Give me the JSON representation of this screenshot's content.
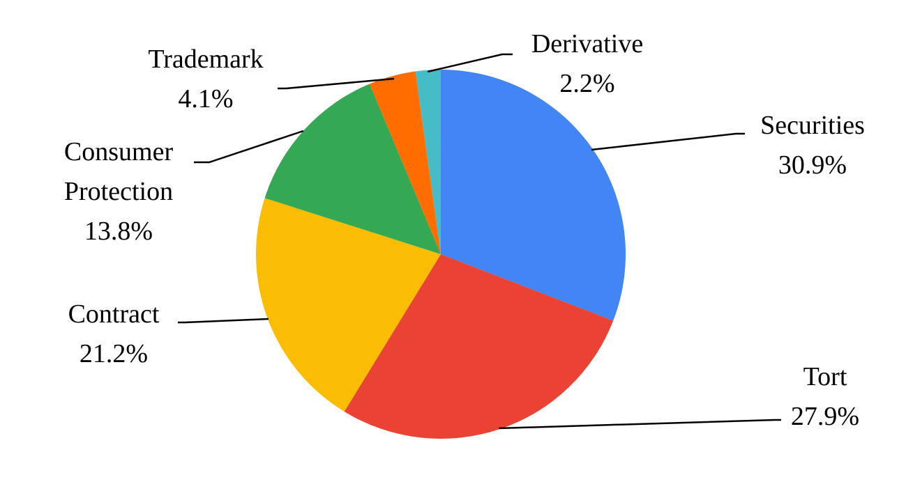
{
  "chart_data": {
    "type": "pie",
    "categories": [
      "Securities",
      "Tort",
      "Contract",
      "Consumer Protection",
      "Trademark",
      "Derivative"
    ],
    "values": [
      30.9,
      27.9,
      21.2,
      13.8,
      4.1,
      2.2
    ],
    "value_labels": [
      "30.9%",
      "27.9%",
      "21.2%",
      "13.8%",
      "4.1%",
      "2.2%"
    ],
    "colors": [
      "#4285f4",
      "#ea4335",
      "#fbbc04",
      "#34a853",
      "#ff6d01",
      "#46bdc6"
    ]
  }
}
